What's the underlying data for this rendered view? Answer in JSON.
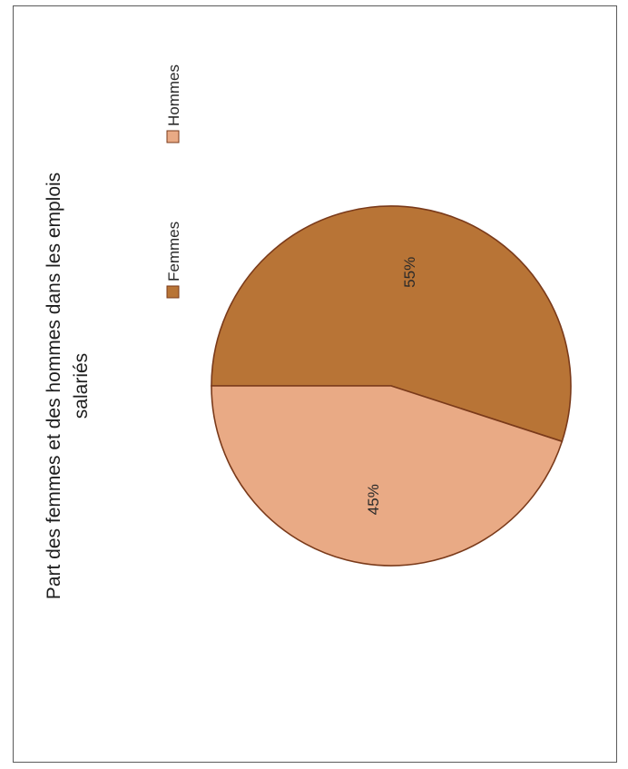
{
  "chart_data": {
    "type": "pie",
    "title": "Part des femmes et des hommes dans les emplois salariés",
    "title_lines": [
      "Part des femmes et des hommes dans les emplois",
      "salariés"
    ],
    "legend_position": "top-right",
    "series": [
      {
        "name": "Femmes",
        "value": 55,
        "label": "55%",
        "color": "#b87436"
      },
      {
        "name": "Hommes",
        "value": 45,
        "label": "45%",
        "color": "#e9aa85"
      }
    ],
    "edge_color": "#7a3a1a"
  }
}
